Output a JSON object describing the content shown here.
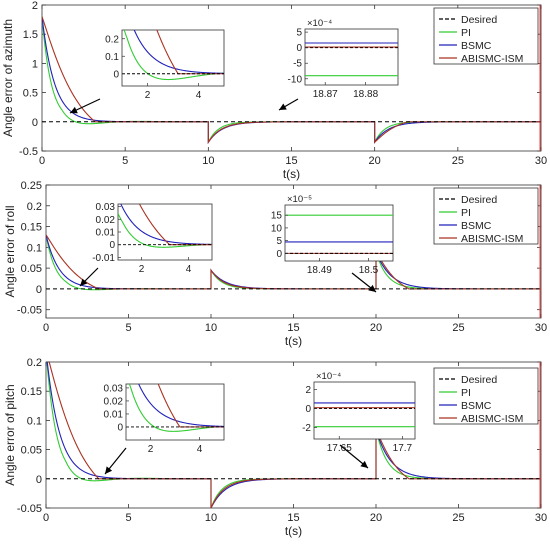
{
  "figure": {
    "legend_position": "top-right",
    "colors": {
      "Desired": "#000000",
      "PI": "#33cc33",
      "BSMC": "#2222bb",
      "ABISMC-ISM": "#aa3322",
      "transient": "#ff4040"
    }
  },
  "chart_data": [
    {
      "type": "line",
      "xlabel": "t(s)",
      "ylabel": "Angle error of azimuth",
      "xlim": [
        0,
        30
      ],
      "ylim": [
        -0.5,
        2
      ],
      "xticks": [
        "0",
        "5",
        "10",
        "15",
        "20",
        "25",
        "30"
      ],
      "yticks": [
        "-0.5",
        "0",
        "0.5",
        "1",
        "1.5",
        "2"
      ],
      "legend": [
        "Desired",
        "PI",
        "BSMC",
        "ABISMC-ISM"
      ],
      "initial_value": 1.8,
      "disturbance_times": [
        10,
        20
      ],
      "disturbance_value": -0.35,
      "time_constants": {
        "PI": 0.55,
        "BSMC": 0.75,
        "ABISMC-ISM": 0.7
      },
      "insets": [
        {
          "xlim": [
            1,
            5
          ],
          "ylim": [
            -0.07,
            0.25
          ],
          "xticks": [
            "2",
            "4"
          ],
          "yticks": [
            "0",
            "0.1",
            "0.2"
          ],
          "exponent": ""
        },
        {
          "xlim": [
            18.865,
            18.888
          ],
          "ylim": [
            -12,
            6
          ],
          "xticks": [
            "18.87",
            "18.88"
          ],
          "yticks": [
            "-10",
            "-5",
            "0",
            "5"
          ],
          "exponent": "×10⁻⁴",
          "levels": {
            "Desired": 0,
            "PI": -9,
            "BSMC": 1.5,
            "ABISMC-ISM": 0.2
          }
        }
      ]
    },
    {
      "type": "line",
      "xlabel": "t(s)",
      "ylabel": "Angle error of roll",
      "xlim": [
        0,
        30
      ],
      "ylim": [
        -0.07,
        0.25
      ],
      "xticks": [
        "0",
        "5",
        "10",
        "15",
        "20",
        "25",
        "30"
      ],
      "yticks": [
        "-0.05",
        "0",
        "0.05",
        "0.1",
        "0.15",
        "0.2",
        "0.25"
      ],
      "legend": [
        "Desired",
        "PI",
        "BSMC",
        "ABISMC-ISM"
      ],
      "initial_value": 0.13,
      "disturbance_times": [
        10,
        20
      ],
      "disturbance_value": 0.045,
      "time_constants": {
        "PI": 0.6,
        "BSMC": 0.8,
        "ABISMC-ISM": 0.7
      },
      "second_jump": 0.09,
      "insets": [
        {
          "xlim": [
            1,
            5
          ],
          "ylim": [
            -0.012,
            0.032
          ],
          "xticks": [
            "2",
            "4"
          ],
          "yticks": [
            "-0.01",
            "0",
            "0.01",
            "0.02",
            "0.03"
          ],
          "exponent": ""
        },
        {
          "xlim": [
            18.483,
            18.505
          ],
          "ylim": [
            -3,
            19
          ],
          "xticks": [
            "18.49",
            "18.5"
          ],
          "yticks": [
            "0",
            "5",
            "10",
            "15"
          ],
          "exponent": "×10⁻⁵",
          "levels": {
            "Desired": 0,
            "PI": 15,
            "BSMC": 4.5,
            "ABISMC-ISM": 0
          }
        }
      ]
    },
    {
      "type": "line",
      "xlabel": "t(s)",
      "ylabel": "Angle error of pitch",
      "xlim": [
        0,
        30
      ],
      "ylim": [
        -0.05,
        0.2
      ],
      "xticks": [
        "0",
        "5",
        "10",
        "15",
        "20",
        "25",
        "30"
      ],
      "yticks": [
        "-0.05",
        "0",
        "0.05",
        "0.1",
        "0.15",
        "0.2"
      ],
      "legend": [
        "Desired",
        "PI",
        "BSMC",
        "ABISMC-ISM"
      ],
      "initial_value": 0.22,
      "disturbance_times": [
        10,
        20
      ],
      "disturbance_value": -0.05,
      "time_constants": {
        "PI": 0.6,
        "BSMC": 0.8,
        "ABISMC-ISM": 0.7
      },
      "second_jump": 0.085,
      "insets": [
        {
          "xlim": [
            1,
            5
          ],
          "ylim": [
            -0.01,
            0.033
          ],
          "xticks": [
            "2",
            "4"
          ],
          "yticks": [
            "0",
            "0.01",
            "0.02",
            "0.03"
          ],
          "exponent": ""
        },
        {
          "xlim": [
            17.63,
            17.71
          ],
          "ylim": [
            -3.2,
            2.8
          ],
          "xticks": [
            "17.65",
            "17.7"
          ],
          "yticks": [
            "-2",
            "0",
            "2"
          ],
          "exponent": "×10⁻⁴",
          "levels": {
            "Desired": 0,
            "PI": -1.9,
            "BSMC": 0.6,
            "ABISMC-ISM": 0.1
          }
        }
      ]
    }
  ]
}
